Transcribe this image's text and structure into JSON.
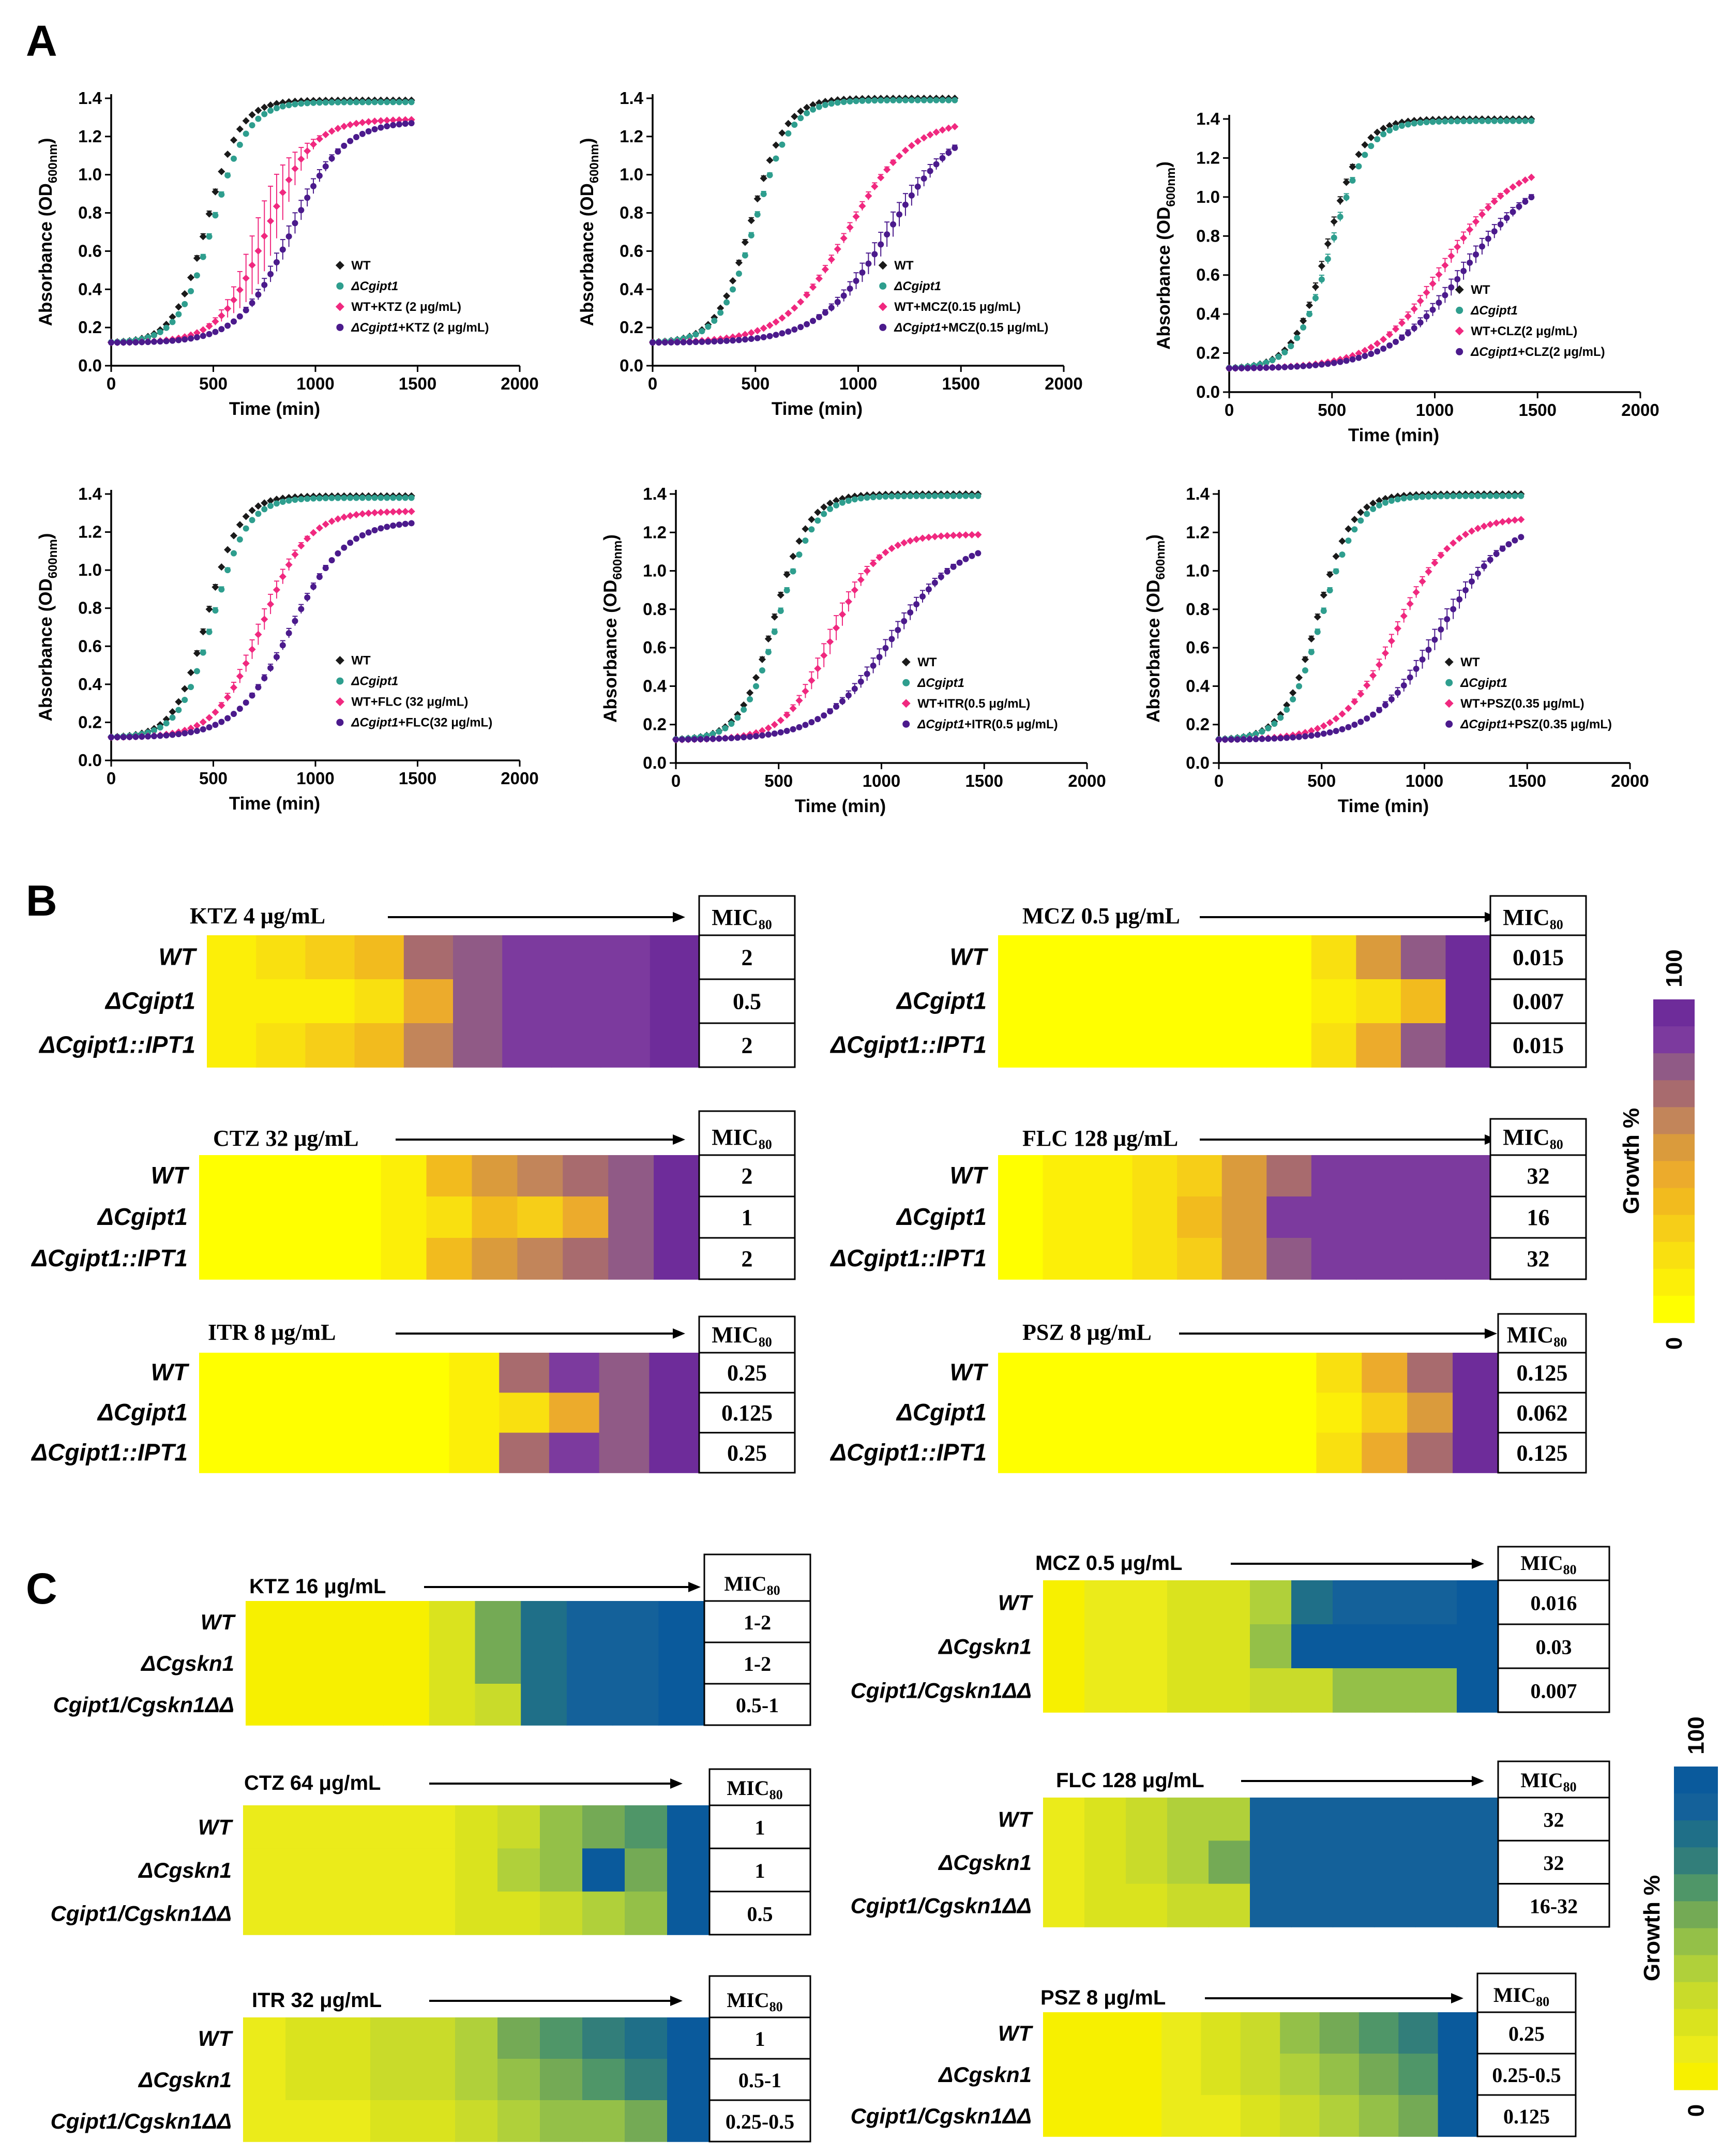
{
  "panel_letters": {
    "a": "A",
    "b": "B",
    "c": "C"
  },
  "colors": {
    "wt": "#1a1a1a",
    "mut": "#2e9e8e",
    "wt_drug": "#f0287f",
    "mut_drug": "#4b1a8c",
    "gold_scale": [
      "#ffff00",
      "#fcef08",
      "#f9e010",
      "#f6ce18",
      "#f2bb1e",
      "#ecab2c",
      "#da9b3c",
      "#c2855a",
      "#a86b6e",
      "#905a86",
      "#7c3a9e",
      "#6e2c9a"
    ],
    "blue_scale": [
      "#f7f000",
      "#ebeb1a",
      "#dae31e",
      "#c9db2a",
      "#b0d03a",
      "#94c048",
      "#74aa55",
      "#4f9668",
      "#327e7a",
      "#1f6f88",
      "#14619a",
      "#0a5a9c"
    ]
  },
  "chart_data": {
    "growth_curves": [
      {
        "type": "line",
        "xlabel": "Time (min)",
        "ylabel": "Absorbance (OD",
        "ylabel_sub": "600nm",
        "ylabel_close": ")",
        "xlim": [
          0,
          2000
        ],
        "ylim": [
          0,
          1.4
        ],
        "xticks": [
          "0",
          "500",
          "1000",
          "1500",
          "2000"
        ],
        "yticks": [
          "0.0",
          "0.2",
          "0.4",
          "0.6",
          "0.8",
          "1.0",
          "1.2",
          "1.4"
        ],
        "legend": [
          "WT",
          "ΔCgipt1",
          "WT+KTZ (2 μg/mL)",
          "ΔCgipt1+KTZ (2 μg/mL)"
        ],
        "series": [
          {
            "name": "WT",
            "L": 1.39,
            "t0": 470,
            "k": 0.0125,
            "err": 0.01
          },
          {
            "name": "ΔCgipt1",
            "L": 1.38,
            "t0": 500,
            "k": 0.0118,
            "err": 0.01
          },
          {
            "name": "WT+KTZ",
            "L": 1.29,
            "t0": 760,
            "k": 0.009,
            "err": 0.18
          },
          {
            "name": "ΔCgipt1+KTZ",
            "L": 1.28,
            "t0": 880,
            "k": 0.008,
            "err": 0.05
          }
        ]
      },
      {
        "type": "line",
        "xlabel": "Time (min)",
        "ylabel": "Absorbance (OD",
        "ylabel_sub": "600nm",
        "ylabel_close": ")",
        "xlim": [
          0,
          2000
        ],
        "ylim": [
          0,
          1.4
        ],
        "xticks": [
          "0",
          "500",
          "1000",
          "1500",
          "2000"
        ],
        "yticks": [
          "0.0",
          "0.2",
          "0.4",
          "0.6",
          "0.8",
          "1.0",
          "1.2",
          "1.4"
        ],
        "legend": [
          "WT",
          "ΔCgipt1",
          "WT+MCZ(0.15 μg/mL)",
          "ΔCgipt1+MCZ(0.15 μg/mL)"
        ],
        "series": [
          {
            "name": "WT",
            "L": 1.4,
            "t0": 480,
            "k": 0.012,
            "err": 0.01
          },
          {
            "name": "ΔCgipt1",
            "L": 1.39,
            "t0": 500,
            "k": 0.0115,
            "err": 0.01
          },
          {
            "name": "WT+MCZ",
            "L": 1.29,
            "t0": 950,
            "k": 0.0065,
            "err": 0.02
          },
          {
            "name": "ΔCgipt1+MCZ",
            "L": 1.29,
            "t0": 1150,
            "k": 0.006,
            "err": 0.06
          }
        ]
      },
      {
        "type": "line",
        "xlabel": "Time (min)",
        "ylabel": "Absorbance (OD",
        "ylabel_sub": "600nm",
        "ylabel_close": ")",
        "xlim": [
          0,
          2000
        ],
        "ylim": [
          0,
          1.4
        ],
        "xticks": [
          "0",
          "500",
          "1000",
          "1500",
          "2000"
        ],
        "yticks": [
          "0.0",
          "0.2",
          "0.4",
          "0.6",
          "0.8",
          "1.0",
          "1.2",
          "1.4"
        ],
        "legend": [
          "WT",
          "ΔCgipt1",
          "WT+CLZ(2 μg/mL)",
          "ΔCgipt1+CLZ(2 μg/mL)"
        ],
        "series": [
          {
            "name": "WT",
            "L": 1.4,
            "t0": 480,
            "k": 0.012,
            "err": 0.02
          },
          {
            "name": "ΔCgipt1",
            "L": 1.39,
            "t0": 500,
            "k": 0.0115,
            "err": 0.02
          },
          {
            "name": "WT+CLZ",
            "L": 1.18,
            "t0": 1050,
            "k": 0.006,
            "err": 0.03
          },
          {
            "name": "ΔCgipt1+CLZ",
            "L": 1.15,
            "t0": 1150,
            "k": 0.0055,
            "err": 0.04
          }
        ]
      },
      {
        "type": "line",
        "xlabel": "Time (min)",
        "ylabel": "Absorbance (OD",
        "ylabel_sub": "600nm",
        "ylabel_close": ")",
        "xlim": [
          0,
          2000
        ],
        "ylim": [
          0,
          1.4
        ],
        "xticks": [
          "0",
          "500",
          "1000",
          "1500",
          "2000"
        ],
        "yticks": [
          "0.0",
          "0.2",
          "0.4",
          "0.6",
          "0.8",
          "1.0",
          "1.2",
          "1.4"
        ],
        "legend": [
          "WT",
          "ΔCgipt1",
          "WT+FLC (32 μg/mL)",
          "ΔCgipt1+FLC(32 μg/mL)"
        ],
        "series": [
          {
            "name": "WT",
            "L": 1.39,
            "t0": 470,
            "k": 0.0125,
            "err": 0.01
          },
          {
            "name": "ΔCgipt1",
            "L": 1.38,
            "t0": 500,
            "k": 0.012,
            "err": 0.01
          },
          {
            "name": "WT+FLC",
            "L": 1.31,
            "t0": 740,
            "k": 0.009,
            "err": 0.05
          },
          {
            "name": "ΔCgipt1+FLC",
            "L": 1.26,
            "t0": 880,
            "k": 0.0075,
            "err": 0.02
          }
        ]
      },
      {
        "type": "line",
        "xlabel": "Time (min)",
        "ylabel": "Absorbance (OD",
        "ylabel_sub": "600nm",
        "ylabel_close": ")",
        "xlim": [
          0,
          2000
        ],
        "ylim": [
          0,
          1.4
        ],
        "xticks": [
          "0",
          "500",
          "1000",
          "1500",
          "2000"
        ],
        "yticks": [
          "0.0",
          "0.2",
          "0.4",
          "0.6",
          "0.8",
          "1.0",
          "1.2",
          "1.4"
        ],
        "legend": [
          "WT",
          "ΔCgipt1",
          "WT+ITR(0.5 μg/mL)",
          "ΔCgipt1+ITR(0.5 μg/mL)"
        ],
        "series": [
          {
            "name": "WT",
            "L": 1.4,
            "t0": 480,
            "k": 0.012,
            "err": 0.01
          },
          {
            "name": "ΔCgipt1",
            "L": 1.39,
            "t0": 500,
            "k": 0.0115,
            "err": 0.01
          },
          {
            "name": "WT+ITR",
            "L": 1.19,
            "t0": 760,
            "k": 0.009,
            "err": 0.06
          },
          {
            "name": "ΔCgipt1+ITR",
            "L": 1.17,
            "t0": 1050,
            "k": 0.006,
            "err": 0.04
          }
        ]
      },
      {
        "type": "line",
        "xlabel": "Time (min)",
        "ylabel": "Absorbance (OD",
        "ylabel_sub": "600nm",
        "ylabel_close": ")",
        "xlim": [
          0,
          2000
        ],
        "ylim": [
          0,
          1.4
        ],
        "xticks": [
          "0",
          "500",
          "1000",
          "1500",
          "2000"
        ],
        "yticks": [
          "0.0",
          "0.2",
          "0.4",
          "0.6",
          "0.8",
          "1.0",
          "1.2",
          "1.4"
        ],
        "legend": [
          "WT",
          "ΔCgipt1",
          "WT+PSZ(0.35 μg/mL)",
          "ΔCgipt1+PSZ(0.35 μg/mL)"
        ],
        "series": [
          {
            "name": "WT",
            "L": 1.4,
            "t0": 480,
            "k": 0.012,
            "err": 0.01
          },
          {
            "name": "ΔCgipt1",
            "L": 1.39,
            "t0": 500,
            "k": 0.0115,
            "err": 0.01
          },
          {
            "name": "WT+PSZ",
            "L": 1.28,
            "t0": 870,
            "k": 0.0075,
            "err": 0.03
          },
          {
            "name": "ΔCgipt1+PSZ",
            "L": 1.27,
            "t0": 1080,
            "k": 0.0062,
            "err": 0.05
          }
        ]
      }
    ],
    "heatmaps_B": {
      "type": "heatmap",
      "colorbar_label": "Growth %",
      "colorbar_max": "100",
      "colorbar_min": "0",
      "mic_header": "MIC",
      "mic_sub": "80",
      "row_labels": [
        "WT",
        "ΔCgipt1",
        "ΔCgipt1::IPT1"
      ],
      "panels": [
        {
          "title": "KTZ 4 μg/mL",
          "mic": [
            "2",
            "0.5",
            "2"
          ],
          "cells": [
            [
              1,
              2,
              3,
              4,
              8,
              9,
              10,
              10,
              10,
              11
            ],
            [
              1,
              1,
              1,
              2,
              5,
              9,
              10,
              10,
              10,
              11
            ],
            [
              1,
              2,
              3,
              4,
              7,
              9,
              10,
              10,
              10,
              11
            ]
          ]
        },
        {
          "title": "MCZ 0.5 μg/mL",
          "mic": [
            "0.015",
            "0.007",
            "0.015"
          ],
          "cells": [
            [
              0,
              0,
              0,
              0,
              0,
              0,
              0,
              2,
              6,
              9,
              11
            ],
            [
              0,
              0,
              0,
              0,
              0,
              0,
              0,
              1,
              2,
              4,
              11
            ],
            [
              0,
              0,
              0,
              0,
              0,
              0,
              0,
              2,
              5,
              9,
              11
            ]
          ]
        },
        {
          "title": "CTZ 32 μg/mL",
          "mic": [
            "2",
            "1",
            "2"
          ],
          "cells": [
            [
              0,
              0,
              0,
              0,
              1,
              4,
              6,
              7,
              8,
              9,
              11
            ],
            [
              0,
              0,
              0,
              0,
              1,
              2,
              4,
              3,
              5,
              9,
              11
            ],
            [
              0,
              0,
              0,
              0,
              1,
              4,
              6,
              7,
              8,
              9,
              11
            ]
          ]
        },
        {
          "title": "FLC 128 μg/mL",
          "mic": [
            "32",
            "16",
            "32"
          ],
          "cells": [
            [
              0,
              1,
              1,
              2,
              3,
              6,
              8,
              10,
              10,
              10,
              10
            ],
            [
              0,
              1,
              1,
              2,
              4,
              6,
              10,
              10,
              10,
              10,
              10
            ],
            [
              0,
              1,
              1,
              2,
              3,
              6,
              9,
              10,
              10,
              10,
              10
            ]
          ]
        },
        {
          "title": "ITR 8 μg/mL",
          "mic": [
            "0.25",
            "0.125",
            "0.25"
          ],
          "cells": [
            [
              0,
              0,
              0,
              0,
              0,
              1,
              8,
              10,
              9,
              11
            ],
            [
              0,
              0,
              0,
              0,
              0,
              1,
              2,
              5,
              9,
              11
            ],
            [
              0,
              0,
              0,
              0,
              0,
              1,
              8,
              10,
              9,
              11
            ]
          ]
        },
        {
          "title": "PSZ 8 μg/mL",
          "mic": [
            "0.125",
            "0.062",
            "0.125"
          ],
          "cells": [
            [
              0,
              0,
              0,
              0,
              0,
              0,
              0,
              2,
              5,
              8,
              11
            ],
            [
              0,
              0,
              0,
              0,
              0,
              0,
              0,
              1,
              3,
              6,
              11
            ],
            [
              0,
              0,
              0,
              0,
              0,
              0,
              0,
              2,
              5,
              8,
              11
            ]
          ]
        }
      ]
    },
    "heatmaps_C": {
      "type": "heatmap",
      "colorbar_label": "Growth %",
      "colorbar_max": "100",
      "colorbar_min": "0",
      "mic_header": "MIC",
      "mic_sub": "80",
      "row_labels": [
        "WT",
        "ΔCgskn1",
        "Cgipt1/Cgskn1ΔΔ"
      ],
      "panels": [
        {
          "title": "KTZ 16 μg/mL",
          "mic": [
            "1-2",
            "1-2",
            "0.5-1"
          ],
          "cells": [
            [
              0,
              0,
              0,
              0,
              2,
              6,
              9,
              10,
              10,
              11
            ],
            [
              0,
              0,
              0,
              0,
              2,
              6,
              9,
              10,
              10,
              11
            ],
            [
              0,
              0,
              0,
              0,
              2,
              3,
              9,
              10,
              10,
              11
            ]
          ]
        },
        {
          "title": "MCZ 0.5 μg/mL",
          "mic": [
            "0.016",
            "0.03",
            "0.007"
          ],
          "cells": [
            [
              0,
              1,
              1,
              2,
              2,
              4,
              9,
              10,
              10,
              10,
              11
            ],
            [
              0,
              1,
              1,
              2,
              2,
              5,
              11,
              11,
              11,
              11,
              11
            ],
            [
              0,
              1,
              1,
              2,
              2,
              3,
              3,
              5,
              5,
              5,
              11
            ]
          ]
        },
        {
          "title": "CTZ 64 μg/mL",
          "mic": [
            "1",
            "1",
            "0.5"
          ],
          "cells": [
            [
              1,
              1,
              1,
              1,
              1,
              2,
              3,
              5,
              6,
              7,
              11
            ],
            [
              1,
              1,
              1,
              1,
              1,
              2,
              4,
              5,
              11,
              6,
              11
            ],
            [
              1,
              1,
              1,
              1,
              1,
              2,
              2,
              3,
              4,
              5,
              11
            ]
          ]
        },
        {
          "title": "FLC 128 μg/mL",
          "mic": [
            "32",
            "32",
            "16-32"
          ],
          "cells": [
            [
              1,
              2,
              3,
              4,
              4,
              10,
              10,
              10,
              10,
              10,
              10
            ],
            [
              1,
              2,
              3,
              4,
              6,
              10,
              10,
              10,
              10,
              10,
              10
            ],
            [
              1,
              2,
              2,
              3,
              3,
              10,
              10,
              10,
              10,
              10,
              10
            ]
          ]
        },
        {
          "title": "ITR 32 μg/mL",
          "mic": [
            "1",
            "0.5-1",
            "0.25-0.5"
          ],
          "cells": [
            [
              1,
              2,
              2,
              3,
              3,
              4,
              6,
              7,
              8,
              9,
              11
            ],
            [
              1,
              2,
              2,
              3,
              3,
              4,
              5,
              6,
              7,
              8,
              11
            ],
            [
              1,
              1,
              1,
              2,
              2,
              3,
              4,
              5,
              5,
              6,
              11
            ]
          ]
        },
        {
          "title": "PSZ 8 μg/mL",
          "mic": [
            "0.25",
            "0.25-0.5",
            "0.125"
          ],
          "cells": [
            [
              0,
              0,
              0,
              1,
              2,
              3,
              5,
              6,
              7,
              8,
              11
            ],
            [
              0,
              0,
              0,
              1,
              2,
              3,
              4,
              5,
              6,
              7,
              11
            ],
            [
              0,
              0,
              0,
              1,
              1,
              2,
              3,
              4,
              5,
              6,
              11
            ]
          ]
        }
      ]
    }
  }
}
